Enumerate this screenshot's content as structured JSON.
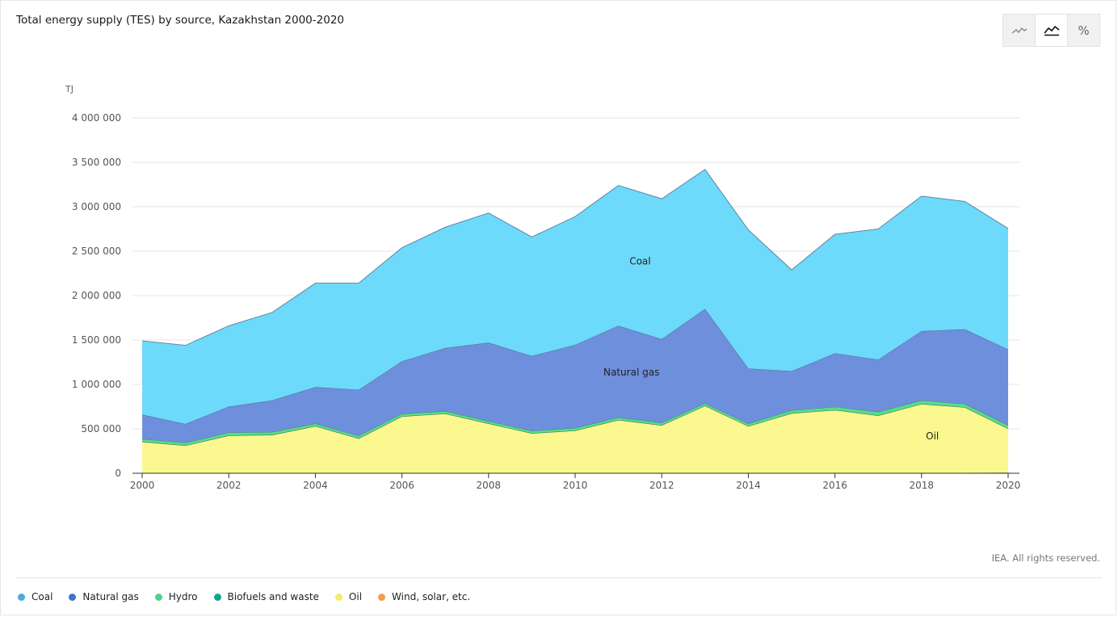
{
  "title": "Total energy supply (TES) by source, Kazakhstan 2000-2020",
  "copyright": "IEA. All rights reserved.",
  "toolbar": {
    "percent_label": "%"
  },
  "chart_data": {
    "type": "area",
    "stacked": true,
    "title": "Total energy supply (TES) by source, Kazakhstan 2000-2020",
    "ylabel": "TJ",
    "ylim": [
      0,
      4000000
    ],
    "yticks": [
      0,
      500000,
      1000000,
      1500000,
      2000000,
      2500000,
      3000000,
      3500000,
      4000000
    ],
    "ytick_labels": [
      "0",
      "500 000",
      "1 000 000",
      "1 500 000",
      "2 000 000",
      "2 500 000",
      "3 000 000",
      "3 500 000",
      "4 000 000"
    ],
    "x": [
      2000,
      2001,
      2002,
      2003,
      2004,
      2005,
      2006,
      2007,
      2008,
      2009,
      2010,
      2011,
      2012,
      2013,
      2014,
      2015,
      2016,
      2017,
      2018,
      2019,
      2020
    ],
    "xticks": [
      2000,
      2002,
      2004,
      2006,
      2008,
      2010,
      2012,
      2014,
      2016,
      2018,
      2020
    ],
    "xtick_labels": [
      "2000",
      "2002",
      "2004",
      "2006",
      "2008",
      "2010",
      "2012",
      "2014",
      "2016",
      "2018",
      "2020"
    ],
    "legend_position": "bottom",
    "grid": true,
    "series": [
      {
        "name": "Wind, solar, etc.",
        "color": "#f0a04b",
        "values": [
          0,
          0,
          0,
          0,
          0,
          0,
          0,
          0,
          0,
          0,
          0,
          0,
          0,
          0,
          0,
          0,
          0,
          1000,
          3000,
          5000,
          6000
        ]
      },
      {
        "name": "Oil",
        "color": "#faf88e",
        "values": [
          355000,
          312000,
          425000,
          432000,
          530000,
          392000,
          640000,
          671000,
          560000,
          450000,
          480000,
          600000,
          540000,
          760000,
          530000,
          675000,
          712000,
          649000,
          777000,
          738000,
          497000
        ]
      },
      {
        "name": "Biofuels and waste",
        "color": "#1fa79b",
        "values": [
          1000,
          1000,
          1000,
          1000,
          1000,
          1000,
          1000,
          1000,
          1000,
          1000,
          1000,
          1000,
          1000,
          1000,
          1000,
          1000,
          1000,
          1000,
          1000,
          1000,
          1000
        ]
      },
      {
        "name": "Hydro",
        "color": "#55df84",
        "values": [
          30000,
          31000,
          32000,
          32000,
          29000,
          28000,
          28000,
          28000,
          27000,
          25000,
          29000,
          28000,
          27000,
          25000,
          28000,
          32000,
          35000,
          40000,
          39000,
          37000,
          36000
        ]
      },
      {
        "name": "Natural gas",
        "color": "#6e8fdc",
        "values": [
          274000,
          211000,
          292000,
          355000,
          410000,
          519000,
          591000,
          710000,
          882000,
          844000,
          935000,
          1031000,
          942000,
          1064000,
          621000,
          442000,
          602000,
          589000,
          780000,
          839000,
          855000
        ]
      },
      {
        "name": "Coal",
        "color": "#6dd9fb",
        "values": [
          830000,
          885000,
          910000,
          990000,
          1170000,
          1200000,
          1280000,
          1360000,
          1460000,
          1340000,
          1445000,
          1580000,
          1580000,
          1570000,
          1560000,
          1140000,
          1340000,
          1470000,
          1520000,
          1440000,
          1360000
        ]
      }
    ],
    "annotations": [
      {
        "text": "Coal",
        "x": 2011.5,
        "y": 2350000
      },
      {
        "text": "Natural gas",
        "x": 2011.3,
        "y": 1100000
      },
      {
        "text": "Oil",
        "x": 2018.25,
        "y": 380000
      }
    ]
  },
  "legend": [
    {
      "label": "Coal",
      "color": "#4aaed6"
    },
    {
      "label": "Natural gas",
      "color": "#3f73c8"
    },
    {
      "label": "Hydro",
      "color": "#4fd28a"
    },
    {
      "label": "Biofuels and waste",
      "color": "#12a48f"
    },
    {
      "label": "Oil",
      "color": "#f1ec70"
    },
    {
      "label": "Wind, solar, etc.",
      "color": "#f0a04b"
    }
  ]
}
